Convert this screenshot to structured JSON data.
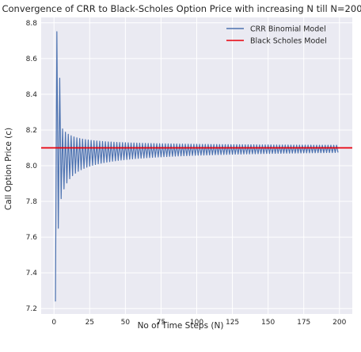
{
  "chart_data": {
    "type": "line",
    "title": "Convergence of CRR to Black-Scholes Option Price with increasing N till N=200",
    "xlabel": "No of Time Steps (N)",
    "ylabel": "Call Option Price (c)",
    "xlim": [
      -9,
      209
    ],
    "ylim": [
      7.17,
      8.83
    ],
    "xticks": [
      0,
      25,
      50,
      75,
      100,
      125,
      150,
      175,
      200
    ],
    "xtick_labels": [
      "0",
      "25",
      "50",
      "75",
      "100",
      "125",
      "150",
      "175",
      "200"
    ],
    "yticks": [
      7.2,
      7.4,
      7.6,
      7.8,
      8.0,
      8.2,
      8.4,
      8.6,
      8.8
    ],
    "ytick_labels": [
      "7.2",
      "7.4",
      "7.6",
      "7.8",
      "8.0",
      "8.2",
      "8.4",
      "8.6",
      "8.8"
    ],
    "grid": true,
    "legend_position": "top-right",
    "series": [
      {
        "name": "CRR Binomial Model",
        "kind": "oscillating_convergence",
        "color": "#4c72b0",
        "n_start": 1,
        "n_end": 199,
        "limit": 8.1,
        "sampled_points": [
          [
            1,
            7.24
          ],
          [
            2,
            8.75
          ],
          [
            3,
            7.65
          ],
          [
            4,
            8.49
          ],
          [
            5,
            7.79
          ],
          [
            6,
            8.38
          ],
          [
            8,
            8.32
          ],
          [
            10,
            8.28
          ],
          [
            15,
            8.22
          ],
          [
            20,
            8.19
          ],
          [
            25,
            8.17
          ],
          [
            50,
            8.135
          ],
          [
            100,
            8.118
          ],
          [
            150,
            8.112
          ],
          [
            199,
            8.109
          ]
        ],
        "lower_envelope": [
          [
            5,
            7.79
          ],
          [
            7,
            7.87
          ],
          [
            10,
            7.92
          ],
          [
            15,
            7.96
          ],
          [
            20,
            7.99
          ],
          [
            25,
            8.01
          ],
          [
            50,
            8.05
          ],
          [
            100,
            8.075
          ],
          [
            150,
            8.085
          ],
          [
            199,
            8.09
          ]
        ]
      },
      {
        "name": "Black Scholes Model",
        "kind": "horizontal_line",
        "color": "#e8000b",
        "value": 8.1
      }
    ]
  }
}
